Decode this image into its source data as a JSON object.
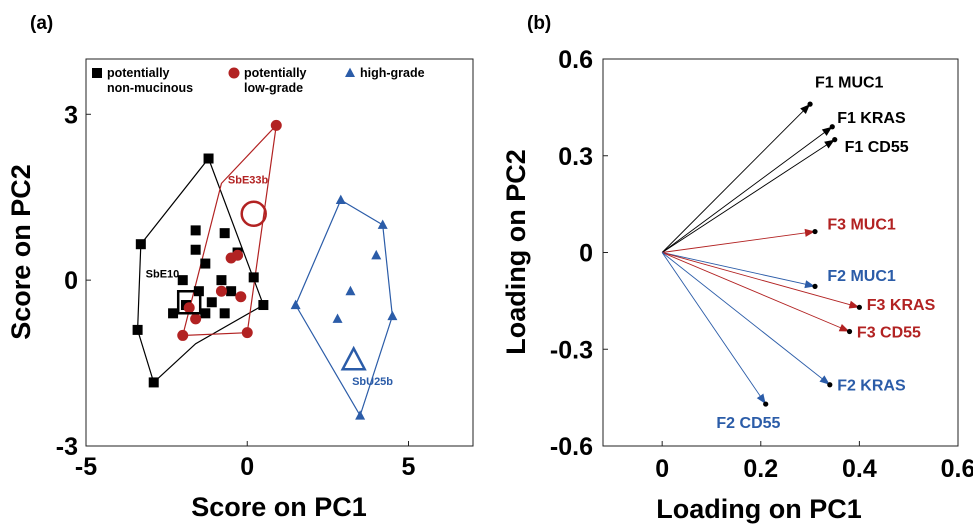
{
  "chart_data": [
    {
      "panel": "(a)",
      "type": "scatter",
      "xlabel": "Score on PC1",
      "ylabel": "Score on PC2",
      "xlim": [
        -5,
        7
      ],
      "ylim": [
        -3,
        4
      ],
      "xticks": [
        -5,
        0,
        5
      ],
      "yticks": [
        -3,
        0,
        3
      ],
      "legend": [
        {
          "name": "potentially non-mucinous",
          "line1": "potentially",
          "line2": "non-mucinous",
          "marker": "square",
          "color": "#000000"
        },
        {
          "name": "potentially low-grade",
          "line1": "potentially",
          "line2": "low-grade",
          "marker": "circle",
          "color": "#b22222"
        },
        {
          "name": "high-grade",
          "line1": "high-grade",
          "line2": "",
          "marker": "triangle",
          "color": "#2b5ca8"
        }
      ],
      "series": [
        {
          "name": "potentially non-mucinous",
          "marker": "square",
          "color": "#000000",
          "points": [
            [
              -1.2,
              2.2
            ],
            [
              -3.3,
              0.65
            ],
            [
              -3.4,
              -0.9
            ],
            [
              -2.9,
              -1.85
            ],
            [
              -1.6,
              0.9
            ],
            [
              -1.6,
              0.55
            ],
            [
              -1.3,
              0.3
            ],
            [
              -0.7,
              0.85
            ],
            [
              -0.3,
              0.5
            ],
            [
              0.2,
              0.05
            ],
            [
              0.5,
              -0.45
            ],
            [
              -0.5,
              -0.2
            ],
            [
              -0.8,
              0.0
            ],
            [
              -1.1,
              -0.4
            ],
            [
              -1.5,
              -0.2
            ],
            [
              -2.3,
              -0.6
            ],
            [
              -1.9,
              -0.45
            ],
            [
              -0.7,
              -0.6
            ],
            [
              -2.0,
              0.0
            ],
            [
              -1.3,
              -0.6
            ]
          ],
          "hull": [
            [
              -1.2,
              2.2
            ],
            [
              0.5,
              -0.45
            ],
            [
              -1.6,
              -1.15
            ],
            [
              -2.9,
              -1.85
            ],
            [
              -3.4,
              -0.9
            ],
            [
              -3.3,
              0.65
            ]
          ]
        },
        {
          "name": "potentially low-grade",
          "marker": "circle",
          "color": "#b22222",
          "points": [
            [
              0.9,
              2.8
            ],
            [
              -0.5,
              0.4
            ],
            [
              -0.3,
              0.45
            ],
            [
              -0.8,
              -0.2
            ],
            [
              -0.2,
              -0.3
            ],
            [
              -1.6,
              -0.7
            ],
            [
              -1.8,
              -0.5
            ],
            [
              -2.0,
              -1.0
            ],
            [
              0.0,
              -0.95
            ]
          ],
          "hull": [
            [
              0.9,
              2.8
            ],
            [
              -0.8,
              1.75
            ],
            [
              -2.0,
              -1.0
            ],
            [
              0.0,
              -0.95
            ]
          ]
        },
        {
          "name": "high-grade",
          "marker": "triangle",
          "color": "#2b5ca8",
          "points": [
            [
              2.9,
              1.45
            ],
            [
              4.2,
              1.0
            ],
            [
              4.0,
              0.45
            ],
            [
              3.2,
              -0.2
            ],
            [
              1.5,
              -0.45
            ],
            [
              2.8,
              -0.7
            ],
            [
              4.5,
              -0.65
            ],
            [
              3.5,
              -2.45
            ]
          ],
          "hull": [
            [
              2.9,
              1.45
            ],
            [
              4.2,
              1.0
            ],
            [
              4.5,
              -0.65
            ],
            [
              3.5,
              -2.45
            ],
            [
              1.5,
              -0.45
            ]
          ]
        }
      ],
      "highlighted_samples": [
        {
          "label": "SbE33b",
          "x": 0.2,
          "y": 1.2,
          "marker": "circle",
          "color": "#b22222",
          "label_dx": -0.8,
          "label_dy": 0.55
        },
        {
          "label": "SbE10",
          "x": -1.8,
          "y": -0.4,
          "marker": "square",
          "color": "#000000",
          "label_dx": -1.35,
          "label_dy": 0.45
        },
        {
          "label": "SbU25b",
          "x": 3.3,
          "y": -1.45,
          "marker": "triangle",
          "color": "#2b5ca8",
          "label_dx": -0.05,
          "label_dy": -0.45
        }
      ]
    },
    {
      "panel": "(b)",
      "type": "vector",
      "xlabel": "Loading on PC1",
      "ylabel": "Loading on PC2",
      "xlim": [
        -0.12,
        0.6
      ],
      "ylim": [
        -0.6,
        0.6
      ],
      "xticks": [
        0,
        0.2,
        0.4,
        0.6
      ],
      "xtick_labels": [
        "0",
        "0.2",
        "0.4",
        "0.6"
      ],
      "yticks": [
        0.6,
        0.3,
        0,
        -0.3,
        -0.6
      ],
      "ytick_labels": [
        "0.6",
        "0.3",
        "0",
        "-0.3",
        "-0.6"
      ],
      "vectors": [
        {
          "label": "F1 MUC1",
          "x": 0.3,
          "y": 0.46,
          "color": "#000000",
          "label_x": 0.31,
          "label_y": 0.53
        },
        {
          "label": "F1 KRAS",
          "x": 0.345,
          "y": 0.39,
          "color": "#000000",
          "label_x": 0.355,
          "label_y": 0.42
        },
        {
          "label": "F1 CD55",
          "x": 0.35,
          "y": 0.35,
          "color": "#000000",
          "label_x": 0.37,
          "label_y": 0.33
        },
        {
          "label": "F3 MUC1",
          "x": 0.31,
          "y": 0.065,
          "color": "#b22222",
          "label_x": 0.335,
          "label_y": 0.09
        },
        {
          "label": "F2 MUC1",
          "x": 0.31,
          "y": -0.105,
          "color": "#2b5ca8",
          "label_x": 0.335,
          "label_y": -0.07
        },
        {
          "label": "F3 KRAS",
          "x": 0.4,
          "y": -0.17,
          "color": "#b22222",
          "label_x": 0.415,
          "label_y": -0.16
        },
        {
          "label": "F3 CD55",
          "x": 0.38,
          "y": -0.245,
          "color": "#b22222",
          "label_x": 0.395,
          "label_y": -0.245
        },
        {
          "label": "F2 KRAS",
          "x": 0.34,
          "y": -0.41,
          "color": "#2b5ca8",
          "label_x": 0.355,
          "label_y": -0.41
        },
        {
          "label": "F2 CD55",
          "x": 0.21,
          "y": -0.47,
          "color": "#2b5ca8",
          "label_x": 0.11,
          "label_y": -0.525
        }
      ]
    }
  ]
}
